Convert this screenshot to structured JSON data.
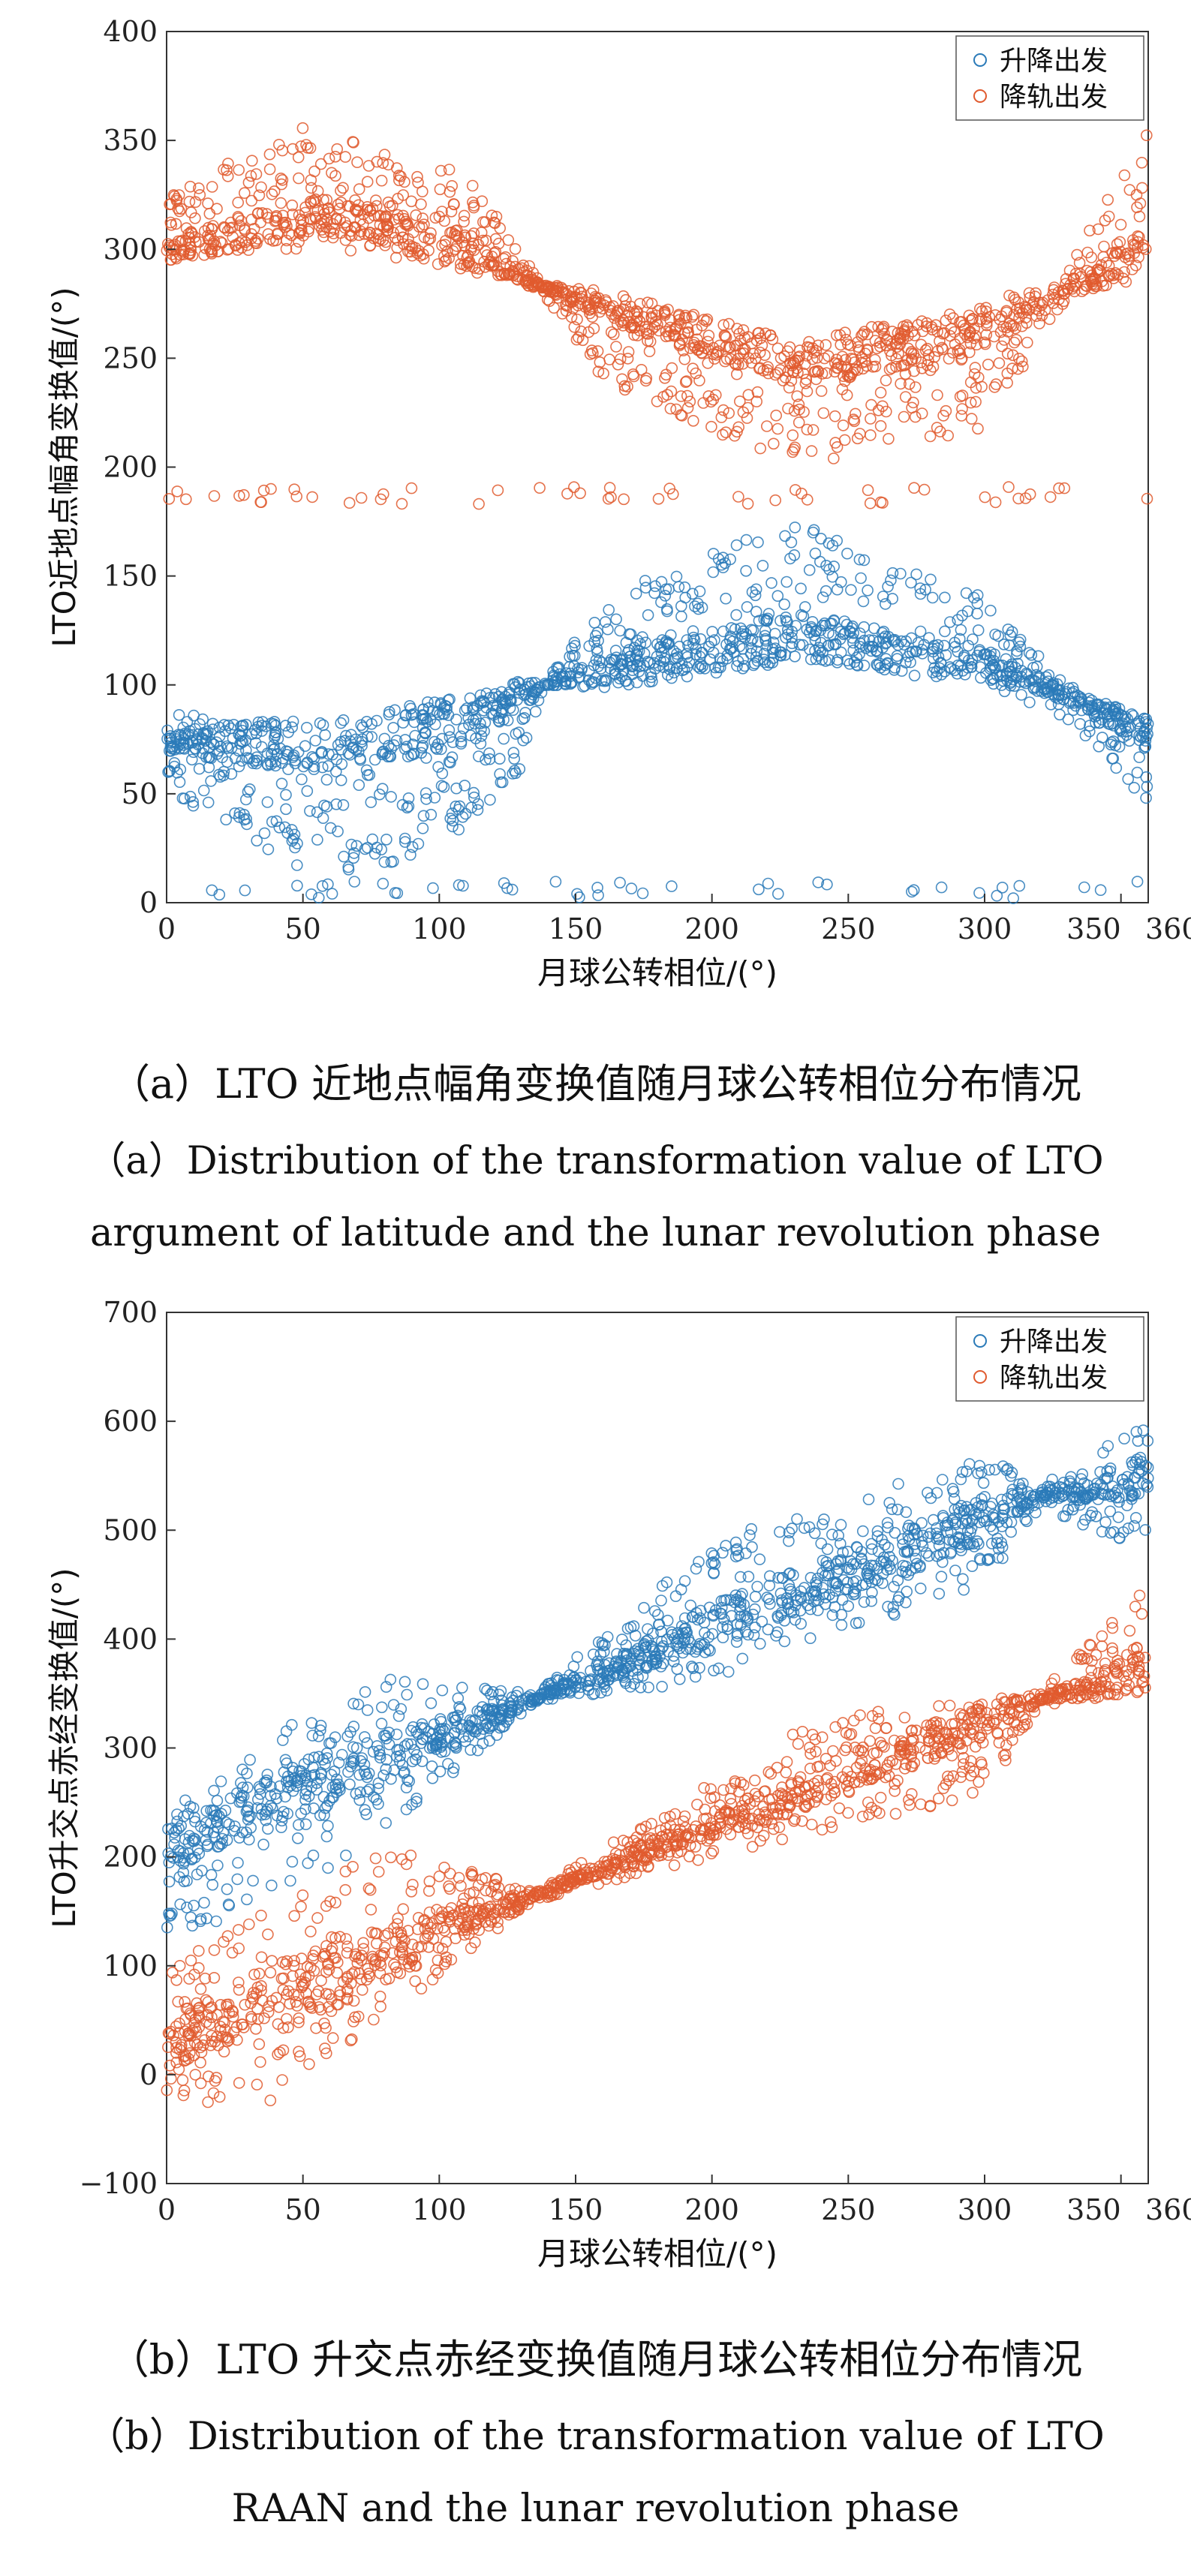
{
  "chart_data": [
    {
      "type": "scatter",
      "id": "a",
      "xlabel": "月球公转相位/(°)",
      "ylabel": "LTO近地点幅角变换值/(°)",
      "xlim": [
        0,
        360
      ],
      "ylim": [
        0,
        400
      ],
      "xticks": [
        0,
        50,
        100,
        150,
        200,
        250,
        300,
        350,
        360
      ],
      "yticks": [
        0,
        50,
        100,
        150,
        200,
        250,
        300,
        350,
        400
      ],
      "grid": false,
      "legend_position": "top-right",
      "series": [
        {
          "name": "升降出发",
          "color": "#2a7ab8",
          "trend": [
            [
              0,
              75
            ],
            [
              60,
              72
            ],
            [
              110,
              84
            ],
            [
              138,
              100
            ],
            [
              230,
              122
            ],
            [
              300,
              110
            ],
            [
              330,
              95
            ],
            [
              360,
              77
            ]
          ],
          "upper": [
            [
              0,
              87
            ],
            [
              60,
              82
            ],
            [
              110,
              92
            ],
            [
              138,
              101
            ],
            [
              160,
              140
            ],
            [
              230,
              177
            ],
            [
              300,
              140
            ],
            [
              330,
              100
            ],
            [
              360,
              85
            ]
          ],
          "lower": [
            [
              0,
              52
            ],
            [
              40,
              20
            ],
            [
              60,
              12
            ],
            [
              100,
              22
            ],
            [
              130,
              60
            ],
            [
              138,
              99
            ],
            [
              230,
              110
            ],
            [
              300,
              100
            ],
            [
              330,
              85
            ],
            [
              360,
              45
            ]
          ],
          "outlier_level": 6
        },
        {
          "name": "降轨出发",
          "color": "#e05a2e",
          "trend": [
            [
              0,
              300
            ],
            [
              60,
              315
            ],
            [
              110,
              300
            ],
            [
              138,
              283
            ],
            [
              230,
              248
            ],
            [
              300,
              262
            ],
            [
              330,
              282
            ],
            [
              360,
              298
            ]
          ],
          "upper": [
            [
              0,
              325
            ],
            [
              50,
              357
            ],
            [
              110,
              335
            ],
            [
              138,
              285
            ],
            [
              230,
              258
            ],
            [
              300,
              275
            ],
            [
              330,
              290
            ],
            [
              360,
              358
            ]
          ],
          "lower": [
            [
              0,
              296
            ],
            [
              60,
              300
            ],
            [
              110,
              290
            ],
            [
              138,
              280
            ],
            [
              160,
              240
            ],
            [
              230,
              198
            ],
            [
              300,
              218
            ],
            [
              330,
              275
            ],
            [
              360,
              293
            ]
          ],
          "outlier_level": 187
        }
      ]
    },
    {
      "type": "scatter",
      "id": "b",
      "xlabel": "月球公转相位/(°)",
      "ylabel": "LTO升交点赤经变换值/(°)",
      "xlim": [
        0,
        360
      ],
      "ylim": [
        -100,
        700
      ],
      "xticks": [
        0,
        50,
        100,
        150,
        200,
        250,
        300,
        350,
        360
      ],
      "yticks": [
        -100,
        0,
        100,
        200,
        300,
        400,
        500,
        600,
        700
      ],
      "grid": false,
      "legend_position": "top-right",
      "series": [
        {
          "name": "升降出发",
          "color": "#2a7ab8",
          "trend": [
            [
              0,
              210
            ],
            [
              135,
              345
            ],
            [
              320,
              530
            ],
            [
              360,
              550
            ]
          ],
          "upper": [
            [
              0,
              240
            ],
            [
              70,
              370
            ],
            [
              135,
              350
            ],
            [
              200,
              490
            ],
            [
              300,
              570
            ],
            [
              320,
              540
            ],
            [
              360,
              600
            ]
          ],
          "lower": [
            [
              0,
              120
            ],
            [
              70,
              200
            ],
            [
              135,
              342
            ],
            [
              200,
              360
            ],
            [
              300,
              450
            ],
            [
              320,
              520
            ],
            [
              360,
              480
            ]
          ]
        },
        {
          "name": "降轨出发",
          "color": "#e05a2e",
          "trend": [
            [
              0,
              30
            ],
            [
              135,
              165
            ],
            [
              320,
              345
            ],
            [
              360,
              370
            ]
          ],
          "upper": [
            [
              0,
              100
            ],
            [
              80,
              210
            ],
            [
              135,
              170
            ],
            [
              240,
              330
            ],
            [
              320,
              350
            ],
            [
              360,
              450
            ]
          ],
          "lower": [
            [
              0,
              -30
            ],
            [
              40,
              -25
            ],
            [
              135,
              160
            ],
            [
              200,
              200
            ],
            [
              300,
              255
            ],
            [
              320,
              340
            ],
            [
              360,
              345
            ]
          ]
        }
      ]
    }
  ],
  "captions": {
    "a_zh": "（a）LTO 近地点幅角变换值随月球公转相位分布情况",
    "a_en1": "（a）Distribution of the transformation value of LTO",
    "a_en2": "argument of latitude and the lunar revolution phase",
    "b_zh": "（b）LTO 升交点赤经变换值随月球公转相位分布情况",
    "b_en1": "（b）Distribution of the transformation value of LTO",
    "b_en2": "RAAN and the lunar revolution phase"
  }
}
